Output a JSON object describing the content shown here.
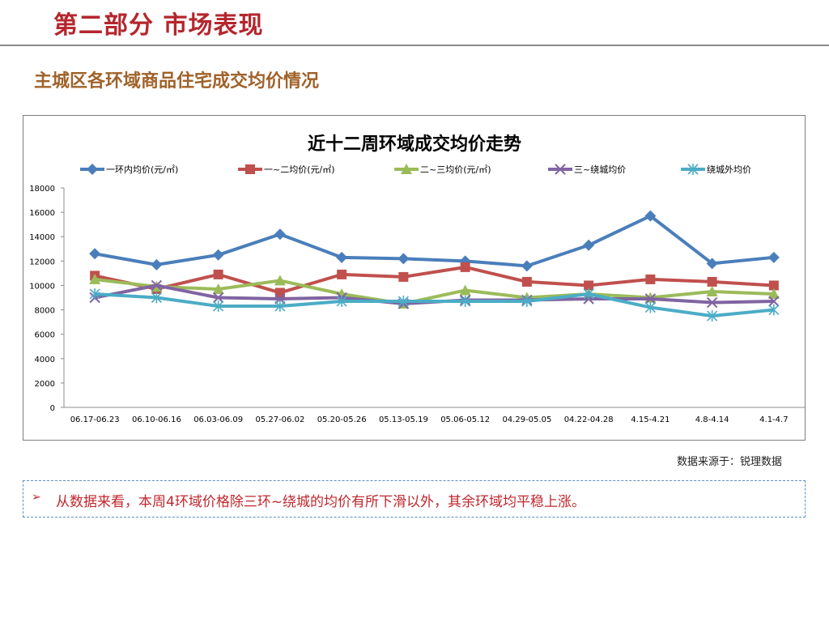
{
  "header": {
    "title": "第二部分 市场表现",
    "section": "主城区各环域商品住宅成交均价情况"
  },
  "chart_data": {
    "type": "line",
    "title": "近十二周环域成交均价走势",
    "categories": [
      "06.17-06.23",
      "06.10-06.16",
      "06.03-06.09",
      "05.27-06.02",
      "05.20-05.26",
      "05.13-05.19",
      "05.06-05.12",
      "04.29-05.05",
      "04.22-04.28",
      "4.15-4.21",
      "4.8-4.14",
      "4.1-4.7"
    ],
    "ylim": [
      0,
      18000
    ],
    "yticks": [
      "0",
      "2000",
      "4000",
      "6000",
      "8000",
      "10000",
      "12000",
      "14000",
      "16000",
      "18000"
    ],
    "legend_position": "top",
    "series": [
      {
        "name": "一环内均价(元/㎡)",
        "color": "#4a7ebb",
        "marker": "diamond",
        "values": [
          12600,
          11700,
          12500,
          14200,
          12300,
          12200,
          12000,
          11600,
          13300,
          15700,
          11800,
          12300
        ]
      },
      {
        "name": "一~二均价(元/㎡)",
        "color": "#c0504d",
        "marker": "square",
        "values": [
          10800,
          9700,
          10900,
          9400,
          10900,
          10700,
          11500,
          10300,
          10000,
          10500,
          10300,
          10000
        ]
      },
      {
        "name": "二~三均价(元/㎡)",
        "color": "#9bbb59",
        "marker": "triangle",
        "values": [
          10500,
          9900,
          9700,
          10400,
          9300,
          8500,
          9600,
          9000,
          9300,
          9000,
          9500,
          9300
        ]
      },
      {
        "name": "三~绕城均价",
        "color": "#8064a2",
        "marker": "x",
        "values": [
          9000,
          10000,
          9000,
          8900,
          9000,
          8500,
          8800,
          8800,
          8900,
          8900,
          8600,
          8700
        ]
      },
      {
        "name": "绕城外均价",
        "color": "#4bacc6",
        "marker": "star",
        "values": [
          9300,
          9000,
          8300,
          8300,
          8700,
          8700,
          8700,
          8700,
          9300,
          8200,
          7500,
          8000
        ]
      }
    ]
  },
  "source": "数据来源于：锐理数据",
  "note": {
    "bullet": "➢",
    "text": "从数据来看，本周4环域价格除三环~绕城的均价有所下滑以外，其余环域均平稳上涨。"
  }
}
